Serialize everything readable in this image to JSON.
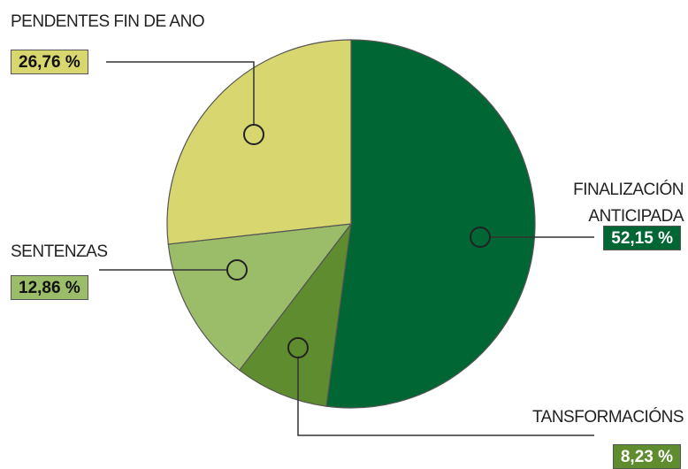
{
  "chart_data": {
    "type": "pie",
    "categories": [
      "FINALIZACIÓN ANTICIPADA",
      "TANSFORMACIÓNS",
      "SENTENZAS",
      "PENDENTES FIN DE ANO"
    ],
    "values": [
      52.15,
      8.23,
      12.86,
      26.76
    ],
    "value_labels": [
      "52,15 %",
      "8,23 %",
      "12,86 %",
      "26,76 %"
    ],
    "colors": [
      "#006633",
      "#5e8c2e",
      "#9bbd6a",
      "#d8d66e"
    ]
  }
}
